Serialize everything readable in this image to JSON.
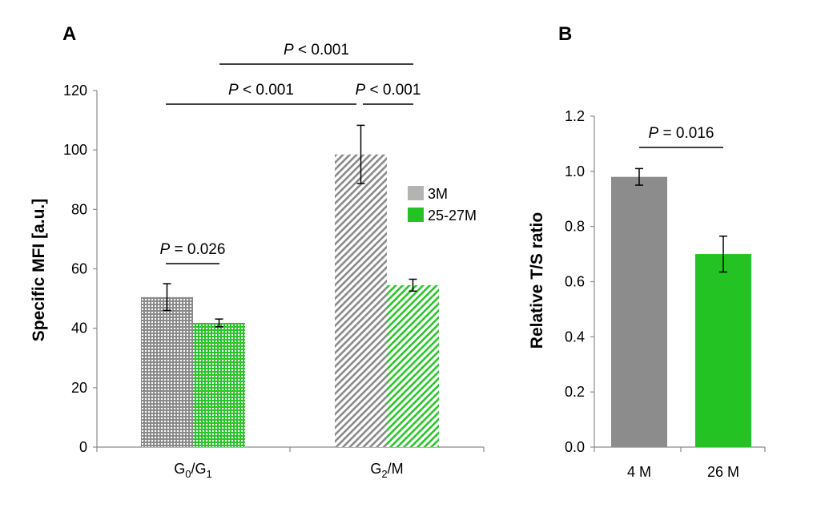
{
  "colors": {
    "gray": "#8c8c8c",
    "green": "#22c322",
    "light_gray": "#b3b3b3",
    "axis": "#8c8c8c",
    "line": "#000000"
  },
  "chart_data": [
    {
      "type": "bar",
      "panel": "A",
      "ylabel": "Specific MFI [a.u.]",
      "ylim": [
        0,
        120
      ],
      "yticks": [
        "0",
        "20",
        "40",
        "60",
        "80",
        "100",
        "120"
      ],
      "category_labels": [
        {
          "main": "G",
          "sub1": "0",
          "sep": "/G",
          "sub2": "1"
        },
        {
          "main": "G",
          "sub1": "2",
          "sep": "/M",
          "sub2": ""
        }
      ],
      "series": [
        {
          "name": "3M",
          "color": "gray",
          "values": [
            50.5,
            98.5
          ],
          "errors": [
            4.5,
            9.8
          ]
        },
        {
          "name": "25-27M",
          "color": "green",
          "values": [
            41.8,
            54.5
          ],
          "errors": [
            1.3,
            2.0
          ]
        }
      ],
      "legend": {
        "entries": [
          "3M",
          "25-27M"
        ],
        "position": "right-of-center"
      },
      "significance": [
        {
          "label": "P < 0.001",
          "from": [
            0,
            0
          ],
          "to": [
            1,
            0
          ]
        },
        {
          "label": "P < 0.001",
          "from": [
            0,
            1
          ],
          "to": [
            1,
            1
          ]
        },
        {
          "label": "P < 0.001",
          "from": [
            1,
            0
          ],
          "to": [
            1,
            1
          ]
        },
        {
          "label": "P = 0.026",
          "from": [
            0,
            0
          ],
          "to": [
            0,
            1
          ]
        }
      ]
    },
    {
      "type": "bar",
      "panel": "B",
      "ylabel": "Relative T/S ratio",
      "ylim": [
        0,
        1.2
      ],
      "yticks": [
        "0.0",
        "0.2",
        "0.4",
        "0.6",
        "0.8",
        "1.0",
        "1.2"
      ],
      "categories": [
        "4 M",
        "26 M"
      ],
      "values": [
        0.98,
        0.7
      ],
      "errors": [
        0.03,
        0.065
      ],
      "colors": [
        "gray",
        "green"
      ],
      "significance": [
        {
          "label": "P = 0.016",
          "from": 0,
          "to": 1
        }
      ]
    }
  ]
}
